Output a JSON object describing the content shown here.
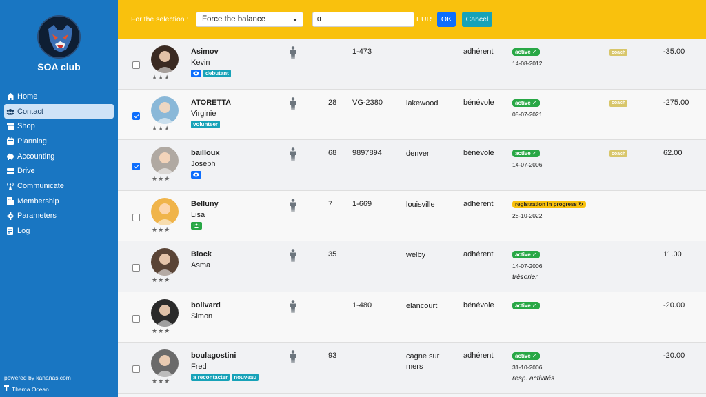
{
  "sidebar": {
    "club_name": "SOA club",
    "nav": [
      {
        "label": "Home",
        "icon": "home-icon"
      },
      {
        "label": "Contact",
        "icon": "users-icon",
        "active": true
      },
      {
        "label": "Shop",
        "icon": "shop-icon"
      },
      {
        "label": "Planning",
        "icon": "calendar-icon"
      },
      {
        "label": "Accounting",
        "icon": "piggy-bank-icon"
      },
      {
        "label": "Drive",
        "icon": "drive-icon"
      },
      {
        "label": "Communicate",
        "icon": "broadcast-icon"
      },
      {
        "label": "Membership",
        "icon": "membership-icon"
      },
      {
        "label": "Parameters",
        "icon": "gear-icon"
      },
      {
        "label": "Log",
        "icon": "log-icon"
      }
    ],
    "powered_by": "powered by kananas.com",
    "theme": "Thema Ocean"
  },
  "topbar": {
    "selection_label": "For the selection :",
    "action_selected": "Force the balance",
    "amount_value": "0",
    "currency": "EUR",
    "ok_label": "OK",
    "cancel_label": "Cancel"
  },
  "contacts": [
    {
      "lastname": "Asimov",
      "firstname": "Kevin",
      "checked": false,
      "stars": "★★★",
      "tags": [
        {
          "type": "eye"
        },
        {
          "label": "debutant"
        }
      ],
      "age": "",
      "code": "1-473",
      "city": "",
      "type": "adhérent",
      "status": "active",
      "status_check": "✓",
      "date": "14-08-2012",
      "role": "",
      "coach": "coach",
      "balance": "-35.00",
      "avatar_bg": "#3a2a22"
    },
    {
      "lastname": "ATORETTA",
      "firstname": "Virginie",
      "checked": true,
      "stars": "★★★",
      "tags": [
        {
          "label": "volunteer"
        }
      ],
      "age": "28",
      "code": "VG-2380",
      "city": "lakewood",
      "type": "bénévole",
      "status": "active",
      "status_check": "✓",
      "date": "05-07-2021",
      "role": "",
      "coach": "coach",
      "balance": "-275.00",
      "avatar_bg": "#8ab8d8"
    },
    {
      "lastname": "bailloux",
      "firstname": "Joseph",
      "checked": true,
      "stars": "★★★",
      "tags": [
        {
          "type": "eye"
        }
      ],
      "age": "68",
      "code": "9897894",
      "city": "denver",
      "type": "bénévole",
      "status": "active",
      "status_check": "✓",
      "date": "14-07-2006",
      "role": "",
      "coach": "coach",
      "balance": "62.00",
      "avatar_bg": "#b0a9a2"
    },
    {
      "lastname": "Belluny",
      "firstname": "Lisa",
      "checked": false,
      "stars": "★★★",
      "tags": [
        {
          "type": "group"
        }
      ],
      "age": "7",
      "code": "1-669",
      "city": "louisville",
      "type": "adhérent",
      "status": "registration in progress",
      "status_check": "↻",
      "date": "28-10-2022",
      "role": "",
      "coach": "",
      "balance": "",
      "avatar_bg": "#f0b44a"
    },
    {
      "lastname": "Block",
      "firstname": "Asma",
      "checked": false,
      "stars": "★★★",
      "tags": [],
      "age": "35",
      "code": "",
      "city": "welby",
      "type": "adhérent",
      "status": "active",
      "status_check": "✓",
      "date": "14-07-2006",
      "role": "trésorier",
      "coach": "",
      "balance": "11.00",
      "avatar_bg": "#5a4436"
    },
    {
      "lastname": "bolivard",
      "firstname": "Simon",
      "checked": false,
      "stars": "★★★",
      "tags": [],
      "age": "",
      "code": "1-480",
      "city": "elancourt",
      "type": "bénévole",
      "status": "active",
      "status_check": "✓",
      "date": "",
      "role": "",
      "coach": "",
      "balance": "-20.00",
      "avatar_bg": "#2a2a2a"
    },
    {
      "lastname": "boulagostini",
      "firstname": "Fred",
      "checked": false,
      "stars": "★★★",
      "tags": [
        {
          "label": "a recontacter"
        },
        {
          "label": "nouveau"
        }
      ],
      "age": "93",
      "code": "",
      "city": "cagne sur mers",
      "type": "adhérent",
      "status": "active",
      "status_check": "✓",
      "date": "31-10-2006",
      "role": "resp. activités",
      "coach": "",
      "balance": "-20.00",
      "avatar_bg": "#6a6a6a"
    }
  ]
}
